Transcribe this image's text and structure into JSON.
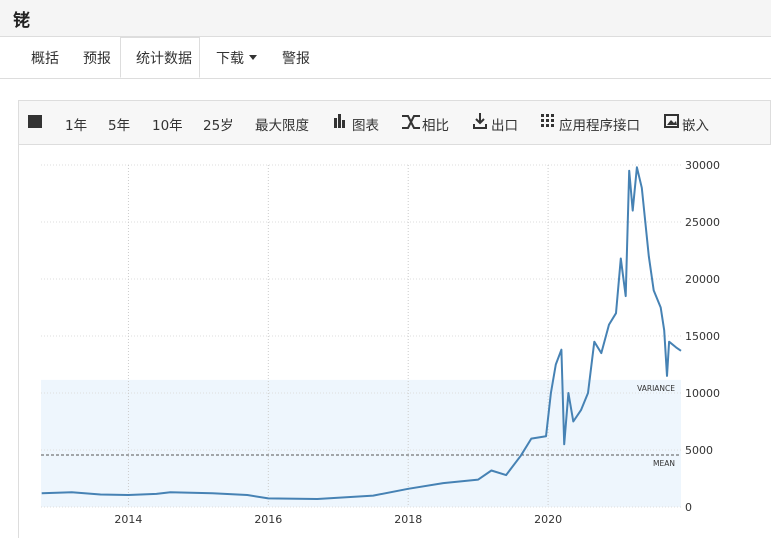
{
  "header": {
    "title": "铑"
  },
  "tabs": [
    "概括",
    "预报",
    "统计数据",
    "下载",
    "警报"
  ],
  "toolbar": [
    "1年",
    "5年",
    "10年",
    "25岁",
    "最大限度",
    "图表",
    "相比",
    "出口",
    "应用程序接口",
    "嵌入"
  ],
  "chart_data": {
    "type": "line",
    "color": "#4682b4",
    "x": [
      2012.76,
      2013.19,
      2013.6,
      2014.0,
      2014.4,
      2014.6,
      2015.2,
      2015.7,
      2016.0,
      2016.7,
      2017.5,
      2018.0,
      2018.5,
      2019.0,
      2019.19,
      2019.4,
      2019.61,
      2019.76,
      2019.97,
      2020.04,
      2020.11,
      2020.19,
      2020.23,
      2020.29,
      2020.36,
      2020.47,
      2020.57,
      2020.66,
      2020.76,
      2020.87,
      2020.97,
      2021.04,
      2021.11,
      2021.16,
      2021.21,
      2021.27,
      2021.34,
      2021.44,
      2021.51,
      2021.61,
      2021.66,
      2021.7,
      2021.73,
      2021.83,
      2021.9
    ],
    "values": [
      1200,
      1300,
      1100,
      1050,
      1150,
      1300,
      1200,
      1050,
      750,
      700,
      1000,
      1600,
      2100,
      2400,
      3200,
      2800,
      4500,
      6000,
      6200,
      10000,
      12500,
      13800,
      5500,
      10000,
      7500,
      8500,
      10000,
      14500,
      13500,
      16000,
      17000,
      21800,
      18500,
      29500,
      26000,
      29800,
      28000,
      22000,
      19000,
      17500,
      15500,
      11500,
      14500,
      14000,
      13700
    ],
    "xlim": [
      2012.75,
      2021.9
    ],
    "xticks": [
      2014,
      2016,
      2018,
      2020
    ],
    "ylim": [
      0,
      30000
    ],
    "yticks": [
      0,
      5000,
      10000,
      15000,
      20000,
      25000,
      30000
    ],
    "grid": true,
    "mean": 4560,
    "mean_label": "MEAN",
    "variance": [
      0,
      11150
    ],
    "variance_label": "VARIANCE"
  }
}
